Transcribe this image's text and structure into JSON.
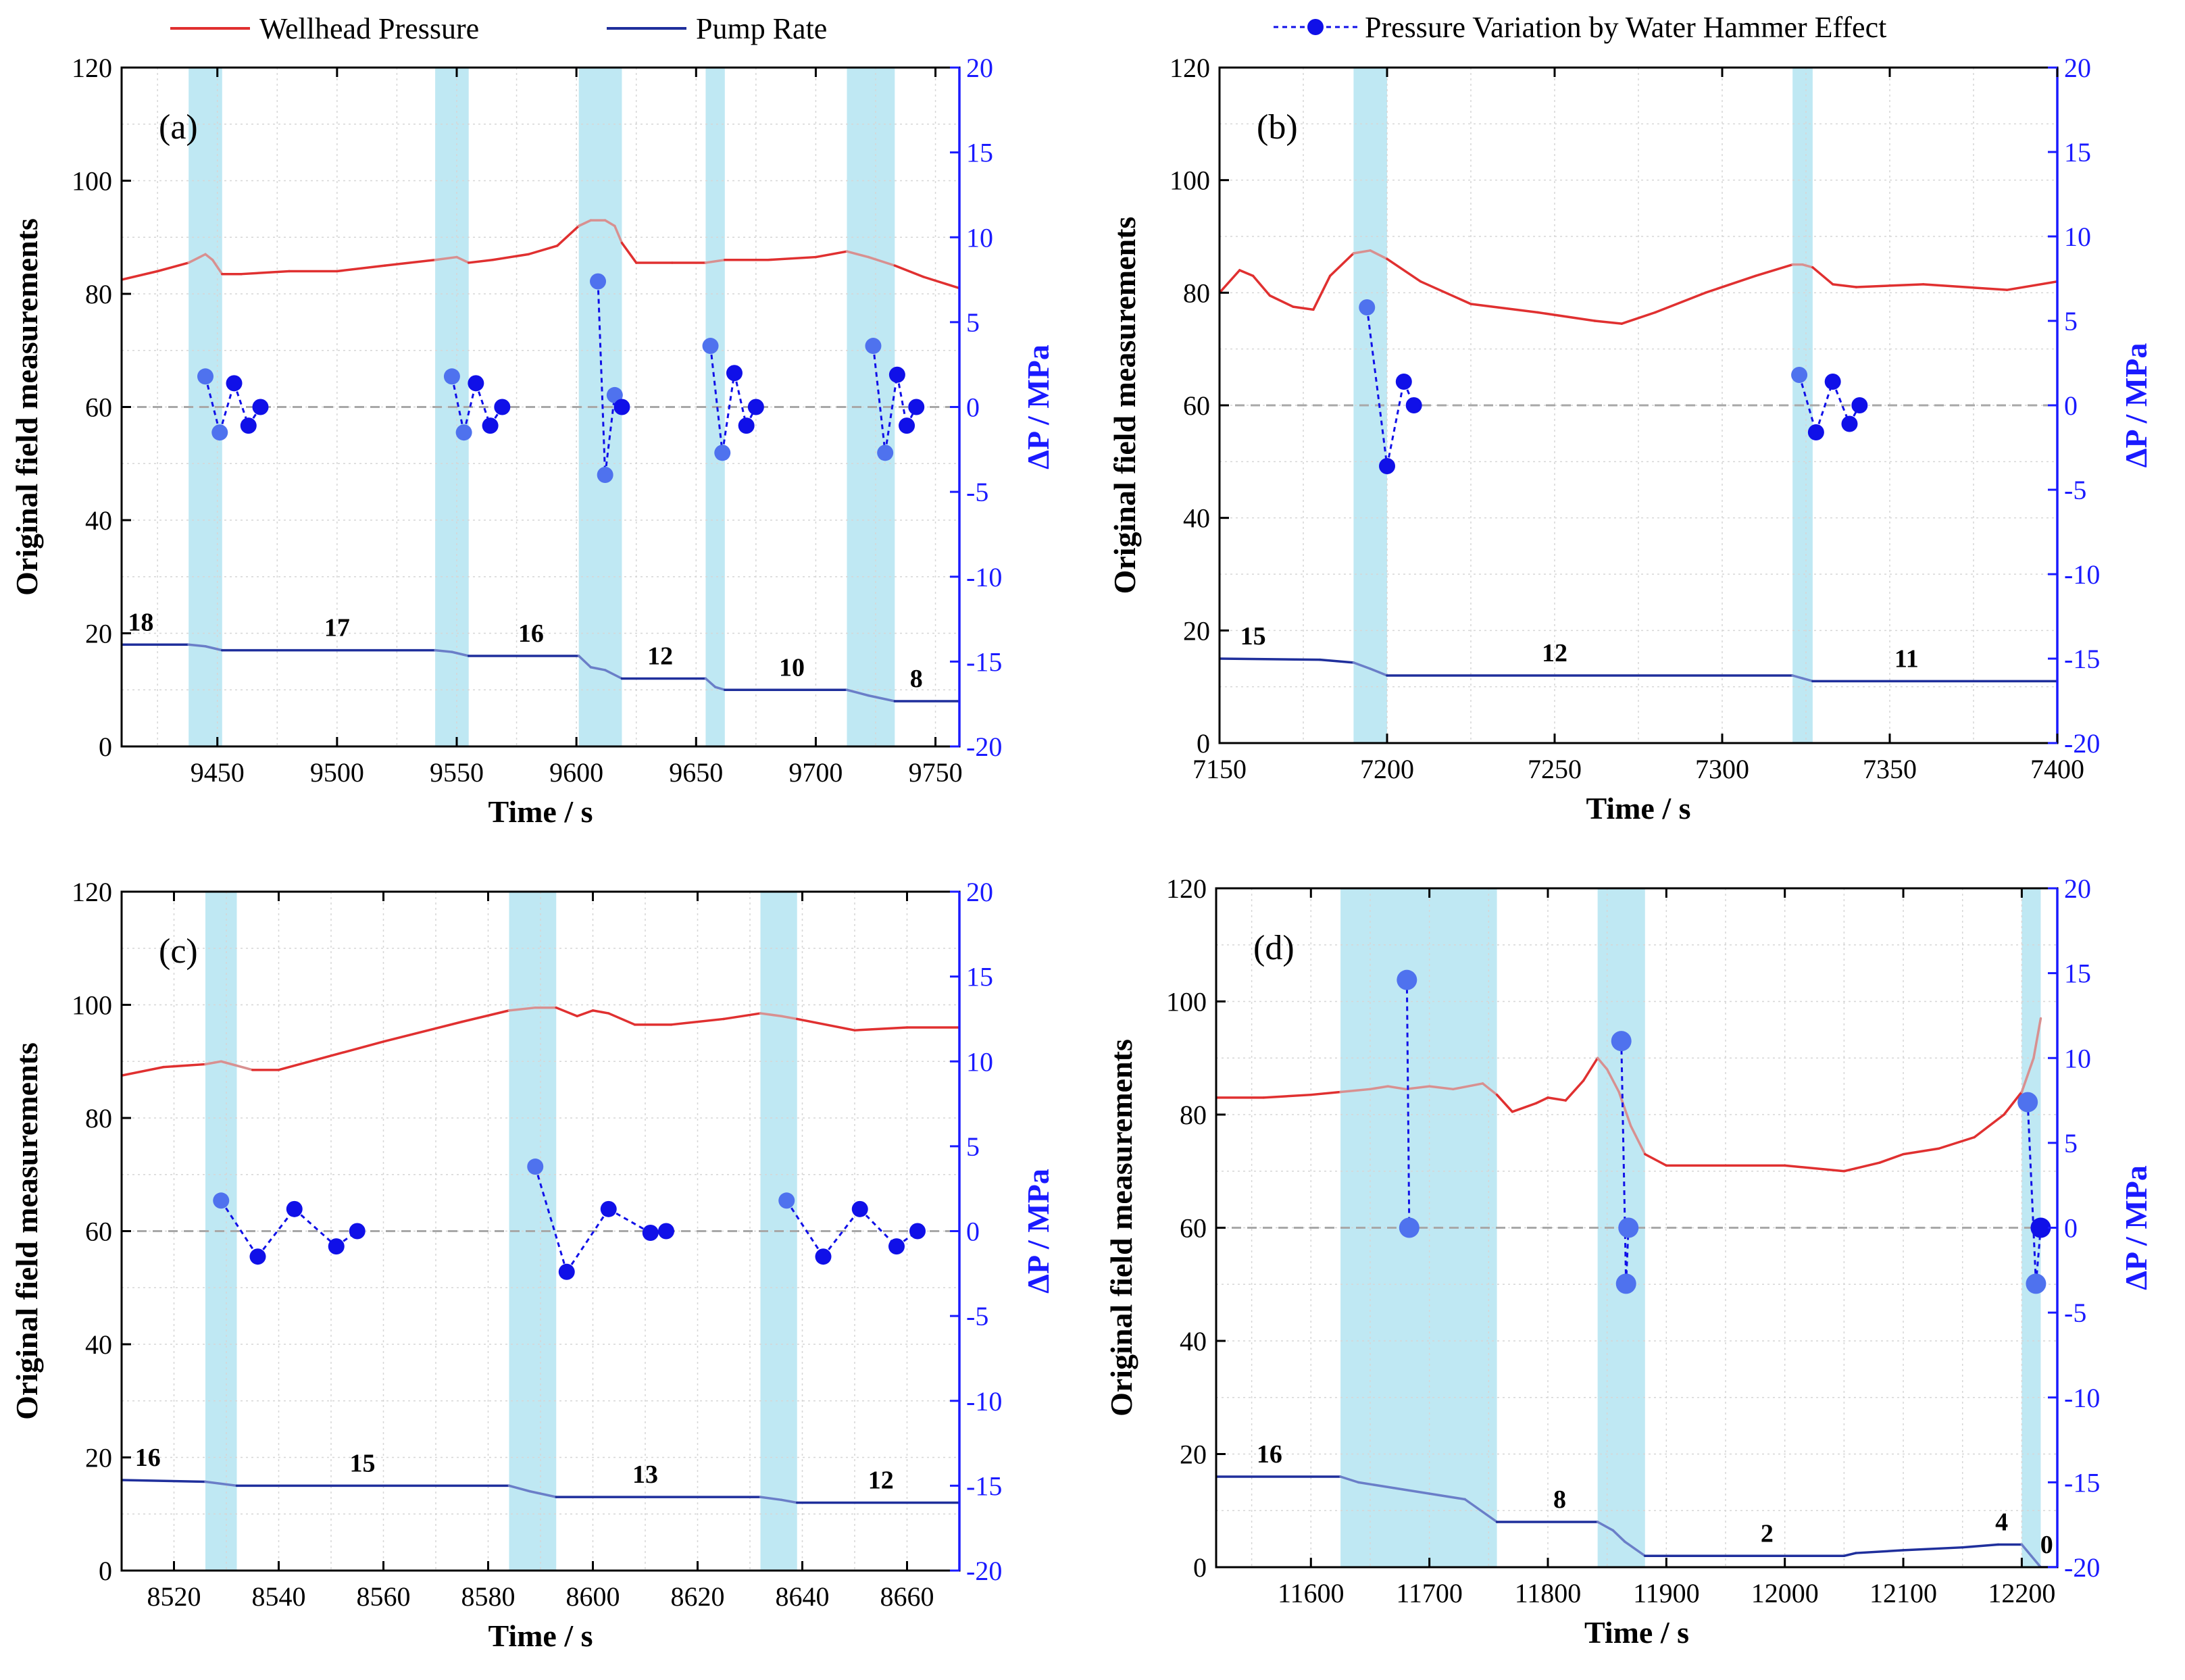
{
  "colors": {
    "pressure": "#e03030",
    "pressure_shaded": "#d89090",
    "pump": "#1f2f9c",
    "pump_shaded": "#6a7ec8",
    "delta_main": "#1010e8",
    "delta_light": "#4f72ee",
    "right_axis": "#1a1aff",
    "shade": "#bfe8f3",
    "grid": "#d6d6d6",
    "zero": "#a8a8a8"
  },
  "legend": {
    "left": [
      {
        "label": "Wellhead Pressure",
        "style": "line",
        "color": "#e03030"
      },
      {
        "label": "Pump Rate",
        "style": "line",
        "color": "#1f2f9c"
      }
    ],
    "right": [
      {
        "label": "Pressure Variation by Water Hammer Effect",
        "style": "dash-dot",
        "color": "#1010e8"
      }
    ]
  },
  "chart_data": [
    {
      "type": "line",
      "panel": "(a)",
      "xlabel": "Time / s",
      "ylabel": "Original field measurements",
      "y2label": "ΔP / MPa",
      "xlim": [
        9410,
        9760
      ],
      "ylim": [
        0,
        120
      ],
      "y2lim": [
        -20,
        20
      ],
      "xticks": [
        9450,
        9500,
        9550,
        9600,
        9650,
        9700,
        9750
      ],
      "yticks": [
        0,
        20,
        40,
        60,
        80,
        100,
        120
      ],
      "y2ticks": [
        -20,
        -15,
        -10,
        -5,
        0,
        5,
        10,
        15,
        20
      ],
      "shaded": [
        [
          9438,
          9452
        ],
        [
          9541,
          9555
        ],
        [
          9601,
          9619
        ],
        [
          9654,
          9662
        ],
        [
          9713,
          9733
        ]
      ],
      "series": [
        {
          "name": "Wellhead Pressure",
          "axis": "left",
          "kind": "line",
          "x": [
            9410,
            9425,
            9438,
            9445,
            9448,
            9452,
            9460,
            9480,
            9500,
            9520,
            9541,
            9550,
            9555,
            9565,
            9580,
            9592,
            9601,
            9606,
            9612,
            9616,
            9619,
            9625,
            9640,
            9654,
            9662,
            9680,
            9700,
            9713,
            9722,
            9733,
            9745,
            9760
          ],
          "y": [
            82.5,
            84,
            85.5,
            87,
            86,
            83.5,
            83.5,
            84,
            84,
            85,
            86,
            86.5,
            85.5,
            86,
            87,
            88.5,
            92,
            93,
            93,
            92,
            89,
            85.5,
            85.5,
            85.5,
            86,
            86,
            86.5,
            87.5,
            86.5,
            85,
            83,
            81
          ]
        },
        {
          "name": "Pump Rate",
          "axis": "left",
          "kind": "step",
          "x": [
            9410,
            9438,
            9445,
            9452,
            9541,
            9548,
            9555,
            9601,
            9606,
            9612,
            9619,
            9654,
            9658,
            9662,
            9713,
            9722,
            9733,
            9760
          ],
          "y": [
            18,
            18,
            17.7,
            17,
            17,
            16.7,
            16,
            16,
            14,
            13.5,
            12,
            12,
            10.5,
            10,
            10,
            9,
            8,
            8
          ]
        },
        {
          "name": "Pressure Variation by Water Hammer Effect",
          "axis": "right",
          "kind": "markers",
          "x": [
            9445,
            9451,
            9457,
            9463,
            9468,
            9548,
            9553,
            9558,
            9564,
            9569,
            9609,
            9612,
            9616,
            9619,
            9656,
            9661,
            9666,
            9671,
            9675,
            9724,
            9729,
            9734,
            9738,
            9742
          ],
          "y": [
            1.8,
            -1.5,
            1.4,
            -1.1,
            0,
            1.8,
            -1.5,
            1.4,
            -1.1,
            0,
            7.4,
            -4,
            0.7,
            0,
            3.6,
            -2.7,
            2,
            -1.1,
            0,
            3.6,
            -2.7,
            1.9,
            -1.1,
            0
          ],
          "light": [
            true,
            true,
            false,
            false,
            false,
            true,
            true,
            false,
            false,
            false,
            true,
            true,
            true,
            false,
            true,
            true,
            false,
            false,
            false,
            true,
            true,
            false,
            false,
            false
          ]
        }
      ],
      "rate_labels": [
        {
          "text": "18",
          "x": 9418,
          "y": 20.5
        },
        {
          "text": "17",
          "x": 9500,
          "y": 19.5
        },
        {
          "text": "16",
          "x": 9581,
          "y": 18.5
        },
        {
          "text": "12",
          "x": 9635,
          "y": 14.5
        },
        {
          "text": "10",
          "x": 9690,
          "y": 12.5
        },
        {
          "text": "8",
          "x": 9742,
          "y": 10.5
        }
      ]
    },
    {
      "type": "line",
      "panel": "(b)",
      "xlabel": "Time / s",
      "ylabel": "Original field measurements",
      "y2label": "ΔP / MPa",
      "xlim": [
        7150,
        7400
      ],
      "ylim": [
        0,
        120
      ],
      "y2lim": [
        -20,
        20
      ],
      "xticks": [
        7150,
        7200,
        7250,
        7300,
        7350,
        7400
      ],
      "yticks": [
        0,
        20,
        40,
        60,
        80,
        100,
        120
      ],
      "y2ticks": [
        -20,
        -15,
        -10,
        -5,
        0,
        5,
        10,
        15,
        20
      ],
      "shaded": [
        [
          7190,
          7200
        ],
        [
          7321,
          7327
        ]
      ],
      "series": [
        {
          "name": "Wellhead Pressure",
          "axis": "left",
          "kind": "line",
          "x": [
            7150,
            7156,
            7160,
            7165,
            7172,
            7178,
            7183,
            7190,
            7195,
            7200,
            7210,
            7225,
            7245,
            7262,
            7270,
            7280,
            7295,
            7310,
            7321,
            7324,
            7327,
            7333,
            7340,
            7360,
            7385,
            7400
          ],
          "y": [
            80,
            84,
            83,
            79.5,
            77.5,
            77,
            83,
            87,
            87.5,
            86,
            82,
            78,
            76.5,
            75,
            74.5,
            76.5,
            80,
            83,
            85,
            85,
            84.5,
            81.5,
            81,
            81.5,
            80.5,
            82
          ]
        },
        {
          "name": "Pump Rate",
          "axis": "left",
          "kind": "step",
          "x": [
            7150,
            7180,
            7190,
            7195,
            7200,
            7321,
            7324,
            7327,
            7400
          ],
          "y": [
            15,
            14.8,
            14.3,
            13.2,
            12,
            12,
            11.5,
            11,
            11
          ]
        },
        {
          "name": "Pressure Variation by Water Hammer Effect",
          "axis": "right",
          "kind": "markers",
          "x": [
            7194,
            7200,
            7205,
            7208,
            7323,
            7328,
            7333,
            7338,
            7341
          ],
          "y": [
            5.8,
            -3.6,
            1.4,
            0,
            1.8,
            -1.6,
            1.4,
            -1.1,
            0
          ],
          "light": [
            true,
            false,
            false,
            false,
            true,
            false,
            false,
            false,
            false
          ]
        }
      ],
      "rate_labels": [
        {
          "text": "15",
          "x": 7160,
          "y": 17.5
        },
        {
          "text": "12",
          "x": 7250,
          "y": 14.5
        },
        {
          "text": "11",
          "x": 7355,
          "y": 13.5
        }
      ]
    },
    {
      "type": "line",
      "panel": "(c)",
      "xlabel": "Time / s",
      "ylabel": "Original field measurements",
      "y2label": "ΔP / MPa",
      "xlim": [
        8510,
        8670
      ],
      "ylim": [
        0,
        120
      ],
      "y2lim": [
        -20,
        20
      ],
      "xticks": [
        8520,
        8540,
        8560,
        8580,
        8600,
        8620,
        8640,
        8660
      ],
      "yticks": [
        0,
        20,
        40,
        60,
        80,
        100,
        120
      ],
      "y2ticks": [
        -20,
        -15,
        -10,
        -5,
        0,
        5,
        10,
        15,
        20
      ],
      "shaded": [
        [
          8526,
          8532
        ],
        [
          8584,
          8593
        ],
        [
          8632,
          8639
        ]
      ],
      "series": [
        {
          "name": "Wellhead Pressure",
          "axis": "left",
          "kind": "line",
          "x": [
            8510,
            8518,
            8526,
            8529,
            8535,
            8540,
            8560,
            8575,
            8584,
            8589,
            8593,
            8597,
            8600,
            8603,
            8608,
            8615,
            8625,
            8632,
            8636,
            8639,
            8650,
            8660,
            8670
          ],
          "y": [
            87.5,
            89,
            89.5,
            90,
            88.5,
            88.5,
            93.5,
            97,
            99,
            99.5,
            99.5,
            98,
            99,
            98.5,
            96.5,
            96.5,
            97.5,
            98.5,
            98,
            97.5,
            95.5,
            96,
            96
          ]
        },
        {
          "name": "Pump Rate",
          "axis": "left",
          "kind": "step",
          "x": [
            8510,
            8526,
            8532,
            8584,
            8588,
            8593,
            8632,
            8636,
            8639,
            8670
          ],
          "y": [
            16,
            15.7,
            15,
            15,
            14,
            13,
            13,
            12.5,
            12,
            12
          ]
        },
        {
          "name": "Pressure Variation by Water Hammer Effect",
          "axis": "right",
          "kind": "markers",
          "x": [
            8529,
            8536,
            8543,
            8551,
            8555,
            8589,
            8595,
            8603,
            8611,
            8614,
            8637,
            8644,
            8651,
            8658,
            8662
          ],
          "y": [
            1.8,
            -1.5,
            1.3,
            -0.9,
            0,
            3.8,
            -2.4,
            1.3,
            -0.1,
            0,
            1.8,
            -1.5,
            1.3,
            -0.9,
            0
          ],
          "light": [
            true,
            false,
            false,
            false,
            false,
            true,
            false,
            false,
            false,
            false,
            true,
            false,
            false,
            false,
            false
          ]
        }
      ],
      "rate_labels": [
        {
          "text": "16",
          "x": 8515,
          "y": 18.5
        },
        {
          "text": "15",
          "x": 8556,
          "y": 17.5
        },
        {
          "text": "13",
          "x": 8610,
          "y": 15.5
        },
        {
          "text": "12",
          "x": 8655,
          "y": 14.5
        }
      ]
    },
    {
      "type": "line",
      "panel": "(d)",
      "xlabel": "Time / s",
      "ylabel": "Original field measurements",
      "y2label": "ΔP / MPa",
      "xlim": [
        11520,
        12230
      ],
      "ylim": [
        0,
        120
      ],
      "y2lim": [
        -20,
        20
      ],
      "xticks": [
        11600,
        11700,
        11800,
        11900,
        12000,
        12100,
        12200
      ],
      "yticks": [
        0,
        20,
        40,
        60,
        80,
        100,
        120
      ],
      "y2ticks": [
        -20,
        -15,
        -10,
        -5,
        0,
        5,
        10,
        15,
        20
      ],
      "shaded": [
        [
          11625,
          11757
        ],
        [
          11842,
          11882
        ],
        [
          12200,
          12216
        ]
      ],
      "series": [
        {
          "name": "Wellhead Pressure",
          "axis": "left",
          "kind": "line",
          "x": [
            11520,
            11560,
            11600,
            11625,
            11650,
            11665,
            11680,
            11700,
            11720,
            11745,
            11757,
            11770,
            11790,
            11800,
            11815,
            11830,
            11842,
            11850,
            11860,
            11870,
            11882,
            11900,
            11950,
            12000,
            12050,
            12060,
            12080,
            12100,
            12130,
            12160,
            12185,
            12200,
            12210,
            12216
          ],
          "y": [
            83,
            83,
            83.5,
            84,
            84.5,
            85,
            84.5,
            85,
            84.5,
            85.5,
            83.5,
            80.5,
            82,
            83,
            82.5,
            86,
            90,
            88,
            84,
            78,
            73,
            71,
            71,
            71,
            70,
            70.5,
            71.5,
            73,
            74,
            76,
            80,
            84,
            90,
            97
          ]
        },
        {
          "name": "Pump Rate",
          "axis": "left",
          "kind": "step",
          "x": [
            11520,
            11625,
            11640,
            11670,
            11700,
            11730,
            11757,
            11842,
            11855,
            11865,
            11882,
            12050,
            12060,
            12100,
            12150,
            12180,
            12200,
            12208,
            12216,
            12230
          ],
          "y": [
            16,
            16,
            15,
            14,
            13,
            12,
            8,
            8,
            6.5,
            4.5,
            2,
            2,
            2.5,
            3,
            3.5,
            4,
            4,
            2,
            0,
            0
          ]
        },
        {
          "name": "Pressure Variation by Water Hammer Effect",
          "axis": "right",
          "kind": "markers",
          "x": [
            11681,
            11683,
            11862,
            11866,
            11868,
            12205,
            12212,
            12216
          ],
          "y": [
            14.6,
            0,
            11,
            -3.3,
            0,
            7.4,
            -3.3,
            0
          ],
          "light": [
            true,
            true,
            true,
            true,
            true,
            true,
            true,
            false
          ]
        }
      ],
      "rate_labels": [
        {
          "text": "16",
          "x": 11565,
          "y": 18.5
        },
        {
          "text": "8",
          "x": 11810,
          "y": 10.5
        },
        {
          "text": "2",
          "x": 11985,
          "y": 4.5
        },
        {
          "text": "4",
          "x": 12183,
          "y": 6.5
        },
        {
          "text": "0",
          "x": 12221,
          "y": 2.5
        }
      ]
    }
  ]
}
